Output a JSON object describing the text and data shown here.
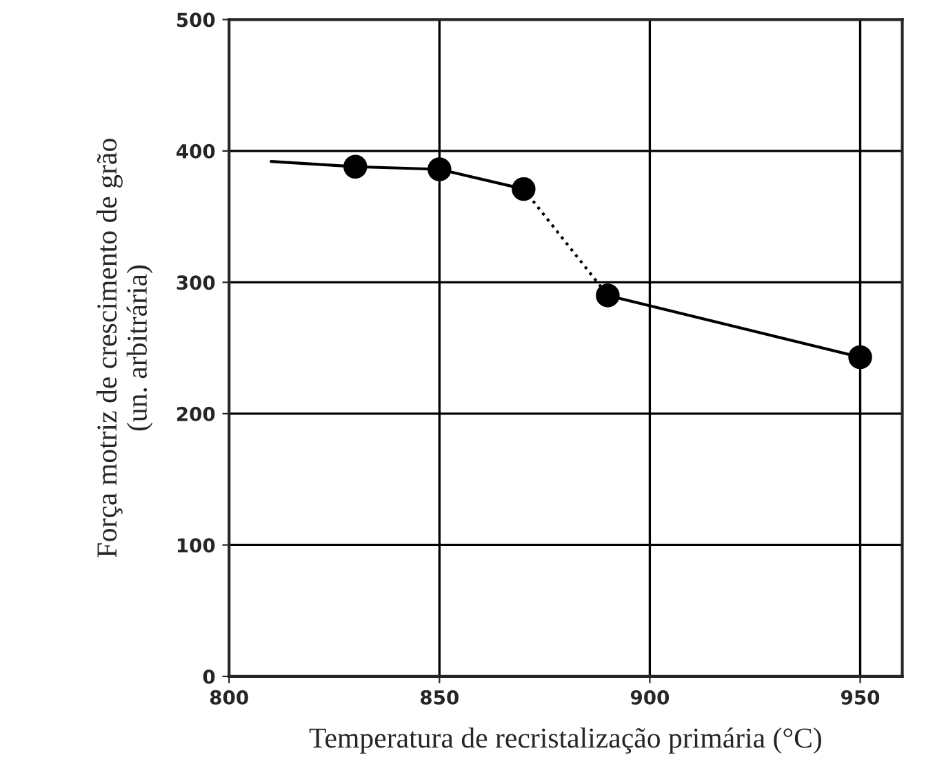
{
  "chart_data": {
    "type": "line",
    "xlabel": "Temperatura de recristalização primária (°C)",
    "ylabel": "Força motriz de crescimento de grão\n(un. arbitrária)",
    "series": [
      {
        "color": "#000000",
        "x": [
          810,
          830,
          850,
          870
        ],
        "values": [
          392,
          388,
          386,
          371
        ],
        "line_style": "solid",
        "marker": "none"
      },
      {
        "color": "#000000",
        "x": [
          870,
          890
        ],
        "values": [
          371,
          290
        ],
        "line_style": "dotted",
        "marker": "none"
      },
      {
        "color": "#000000",
        "x": [
          890,
          950
        ],
        "values": [
          290,
          243
        ],
        "line_style": "solid",
        "marker": "none"
      },
      {
        "type": "scatter",
        "color": "#000000",
        "x": [
          830,
          850,
          870,
          890,
          950
        ],
        "values": [
          388,
          386,
          371,
          290,
          243
        ],
        "marker": "circle"
      }
    ],
    "xlim": [
      800,
      960
    ],
    "xticks": [
      800,
      850,
      900,
      950
    ],
    "ylim": [
      0,
      500
    ],
    "yticks": [
      0,
      100,
      200,
      300,
      400,
      500
    ],
    "grid": true,
    "legend": false
  }
}
